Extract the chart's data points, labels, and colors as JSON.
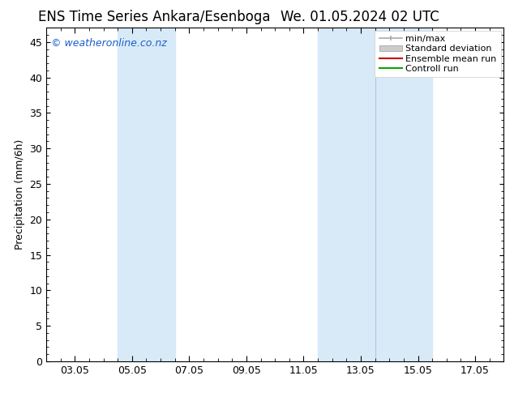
{
  "title_left": "ENS Time Series Ankara/Esenboga",
  "title_right": "We. 01.05.2024 02 UTC",
  "ylabel": "Precipitation (mm/6h)",
  "ylim": [
    0,
    47
  ],
  "yticks": [
    0,
    5,
    10,
    15,
    20,
    25,
    30,
    35,
    40,
    45
  ],
  "xmin": 0.0,
  "xmax": 16.0,
  "xtick_positions": [
    1,
    3,
    5,
    7,
    9,
    11,
    13,
    15
  ],
  "xtick_labels": [
    "03.05",
    "05.05",
    "07.05",
    "09.05",
    "11.05",
    "13.05",
    "15.05",
    "17.05"
  ],
  "shaded_bands": [
    {
      "xmin": 2.5,
      "xmax": 4.5,
      "color": "#d8eaf8"
    },
    {
      "xmin": 9.5,
      "xmax": 11.5,
      "color": "#d8eaf8"
    },
    {
      "xmin": 11.5,
      "xmax": 13.5,
      "color": "#d8eaf8"
    }
  ],
  "band_divider": {
    "x": 11.5,
    "color": "#b0c8e0"
  },
  "copyright_text": "© weatheronline.co.nz",
  "legend_labels": [
    "min/max",
    "Standard deviation",
    "Ensemble mean run",
    "Controll run"
  ],
  "background_color": "#ffffff",
  "plot_bg_color": "#ffffff",
  "title_fontsize": 12,
  "axis_fontsize": 9,
  "tick_fontsize": 9,
  "copyright_fontsize": 9
}
